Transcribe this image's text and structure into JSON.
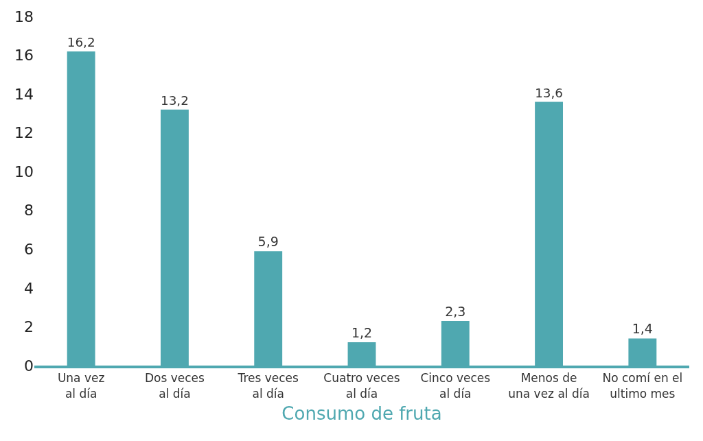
{
  "chart_data": {
    "type": "bar",
    "xlabel": "Consumo de fruta",
    "categories": [
      "Una vez\nal día",
      "Dos veces\nal día",
      "Tres veces\nal día",
      "Cuatro veces\nal día",
      "Cinco veces\nal día",
      "Menos de\nuna vez al día",
      "No comí en el\nultimo mes"
    ],
    "values": [
      16.2,
      13.2,
      5.9,
      1.2,
      2.3,
      13.6,
      1.4
    ],
    "value_labels": [
      "16,2",
      "13,2",
      "5,9",
      "1,2",
      "2,3",
      "13,6",
      "1,4"
    ],
    "color": "#4fa8b0",
    "ylim": [
      0,
      18
    ],
    "yticks": [
      0,
      2,
      4,
      6,
      8,
      10,
      12,
      14,
      16,
      18
    ]
  }
}
